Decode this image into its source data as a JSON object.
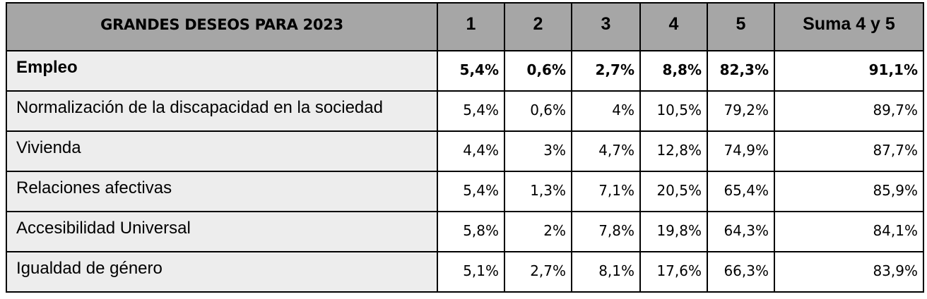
{
  "table": {
    "title": "GRANDES DESEOS PARA 2023",
    "columns": [
      "1",
      "2",
      "3",
      "4",
      "5",
      "Suma 4 y 5"
    ],
    "rows": [
      {
        "label": "Empleo",
        "values": [
          "5,4%",
          "0,6%",
          "2,7%",
          "8,8%",
          "82,3%",
          "91,1%"
        ]
      },
      {
        "label": "Normalización de la discapacidad en la sociedad",
        "values": [
          "5,4%",
          "0,6%",
          "4%",
          "10,5%",
          "79,2%",
          "89,7%"
        ]
      },
      {
        "label": "Vivienda",
        "values": [
          "4,4%",
          "3%",
          "4,7%",
          "12,8%",
          "74,9%",
          "87,7%"
        ]
      },
      {
        "label": "Relaciones afectivas",
        "values": [
          "5,4%",
          "1,3%",
          "7,1%",
          "20,5%",
          "65,4%",
          "85,9%"
        ]
      },
      {
        "label": "Accesibilidad Universal",
        "values": [
          "5,8%",
          "2%",
          "7,8%",
          "19,8%",
          "64,3%",
          "84,1%"
        ]
      },
      {
        "label": "Igualdad de género",
        "values": [
          "5,1%",
          "2,7%",
          "8,1%",
          "17,6%",
          "66,3%",
          "83,9%"
        ]
      }
    ]
  },
  "colors": {
    "header_bg": "#a6a6a6",
    "label_bg": "#ededed",
    "border": "#000000"
  }
}
